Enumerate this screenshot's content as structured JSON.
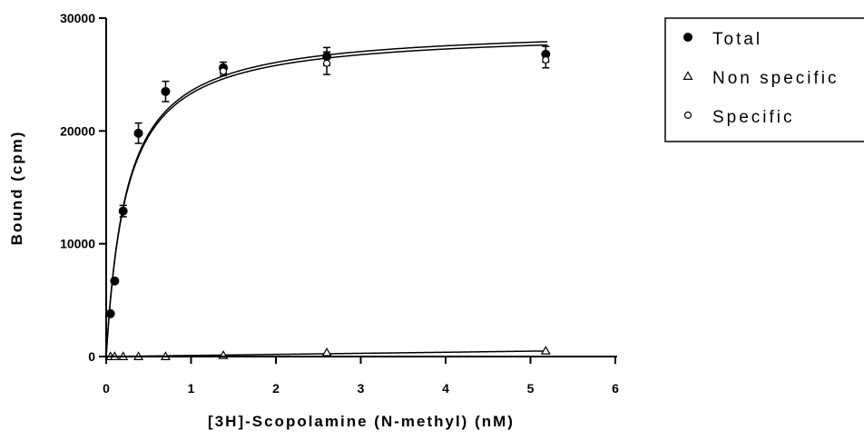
{
  "chart_data": {
    "type": "scatter",
    "xlabel": "[3H]-Scopolamine (N-methyl) (nM)",
    "ylabel": "Bound (cpm)",
    "xlim": [
      0,
      6
    ],
    "ylim": [
      0,
      30000
    ],
    "x_ticks": [
      "0",
      "1",
      "2",
      "3",
      "4",
      "5",
      "6"
    ],
    "y_ticks": [
      "0",
      "10000",
      "20000",
      "30000"
    ],
    "grid": false,
    "legend_position": "top-right, outside plot",
    "series": [
      {
        "name": "Total",
        "marker": "filled-circle",
        "points": [
          {
            "x": 0.05,
            "y": 3800
          },
          {
            "x": 0.1,
            "y": 6700
          },
          {
            "x": 0.2,
            "y": 12900,
            "err": 500
          },
          {
            "x": 0.38,
            "y": 19800,
            "err": 900
          },
          {
            "x": 0.7,
            "y": 23500,
            "err": 900
          },
          {
            "x": 1.38,
            "y": 25600,
            "err": 500
          },
          {
            "x": 2.6,
            "y": 26600,
            "err": 800
          },
          {
            "x": 5.18,
            "y": 26800,
            "err": 700
          }
        ]
      },
      {
        "name": "Non specific",
        "marker": "open-triangle",
        "points": [
          {
            "x": 0.05,
            "y": 0
          },
          {
            "x": 0.1,
            "y": 0
          },
          {
            "x": 0.2,
            "y": 0
          },
          {
            "x": 0.38,
            "y": 0
          },
          {
            "x": 0.7,
            "y": 0
          },
          {
            "x": 1.38,
            "y": 100
          },
          {
            "x": 2.6,
            "y": 350
          },
          {
            "x": 5.18,
            "y": 500
          }
        ]
      },
      {
        "name": "Specific",
        "marker": "open-circle",
        "points": [
          {
            "x": 1.38,
            "y": 25300,
            "err": 400
          },
          {
            "x": 2.6,
            "y": 26000,
            "err": 1000
          },
          {
            "x": 5.18,
            "y": 26300,
            "err": 700
          }
        ]
      }
    ],
    "fit_curves": [
      {
        "series": "Total",
        "model": "one-site saturation",
        "bmax": 29200,
        "kd": 0.24
      },
      {
        "series": "Specific",
        "model": "one-site saturation",
        "bmax": 28900,
        "kd": 0.24
      },
      {
        "series": "Non specific",
        "model": "linear",
        "slope": 95
      }
    ]
  }
}
